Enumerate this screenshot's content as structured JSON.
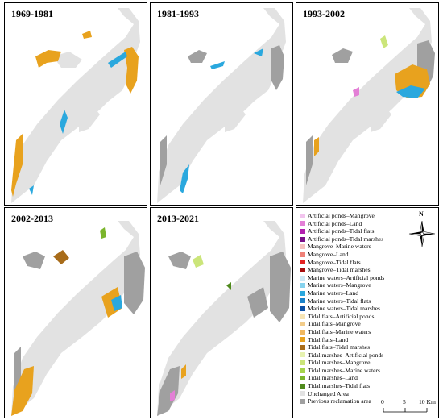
{
  "panels": [
    {
      "title": "1969-1981"
    },
    {
      "title": "1981-1993"
    },
    {
      "title": "1993-2002"
    },
    {
      "title": "2002-2013"
    },
    {
      "title": "2013-2021"
    }
  ],
  "legend": {
    "items": [
      {
        "label": "Artificial ponds–Mangrove",
        "color": "#f2c4ee"
      },
      {
        "label": "Artificial ponds–Land",
        "color": "#e37fd6"
      },
      {
        "label": "Artificial ponds–Tidal flats",
        "color": "#b21fae"
      },
      {
        "label": "Artificial ponds–Tidal marshes",
        "color": "#7a0f88"
      },
      {
        "label": "Mangrove–Marine waters",
        "color": "#f7c2c0"
      },
      {
        "label": "Mangrove–Land",
        "color": "#ef8178"
      },
      {
        "label": "Mangrove–Tidal flats",
        "color": "#e32222"
      },
      {
        "label": "Mangrove–Tidal marshes",
        "color": "#a50d0d"
      },
      {
        "label": "Marine waters–Artificial ponds",
        "color": "#cde9f6"
      },
      {
        "label": "Marine waters–Mangrove",
        "color": "#86d3ee"
      },
      {
        "label": "Marine waters–Land",
        "color": "#2aa8de"
      },
      {
        "label": "Marine waters–Tidal flats",
        "color": "#1a82c9"
      },
      {
        "label": "Marine waters–Tidal marshes",
        "color": "#0a4fa5"
      },
      {
        "label": "Tidal flats–Artificial ponds",
        "color": "#f6e4b4"
      },
      {
        "label": "Tidal flats–Mangrove",
        "color": "#f2cc8a"
      },
      {
        "label": "Tidal flats–Marine waters",
        "color": "#f0b860"
      },
      {
        "label": "Tidal flats–Land",
        "color": "#e8a21e"
      },
      {
        "label": "Tidal flats–Tidal marshes",
        "color": "#a86c1a"
      },
      {
        "label": "Tidal marshes–Artificial ponds",
        "color": "#e6f2b0"
      },
      {
        "label": "Tidal marshes–Mangrove",
        "color": "#cbe57a"
      },
      {
        "label": "Tidal marshes–Marine waters",
        "color": "#a6d44c"
      },
      {
        "label": "Tidal marshes–Land",
        "color": "#7bb52c"
      },
      {
        "label": "Tidal marshes–Tidal flats",
        "color": "#4f8a1c"
      },
      {
        "label": "Unchanged Area",
        "color": "#e2e2e2"
      },
      {
        "label": "Previous reclamation area",
        "color": "#a0a0a0"
      }
    ]
  },
  "north_arrow": {
    "label": "N"
  },
  "scale_bar": {
    "ticks": [
      "0",
      "5",
      "10 Km"
    ]
  }
}
